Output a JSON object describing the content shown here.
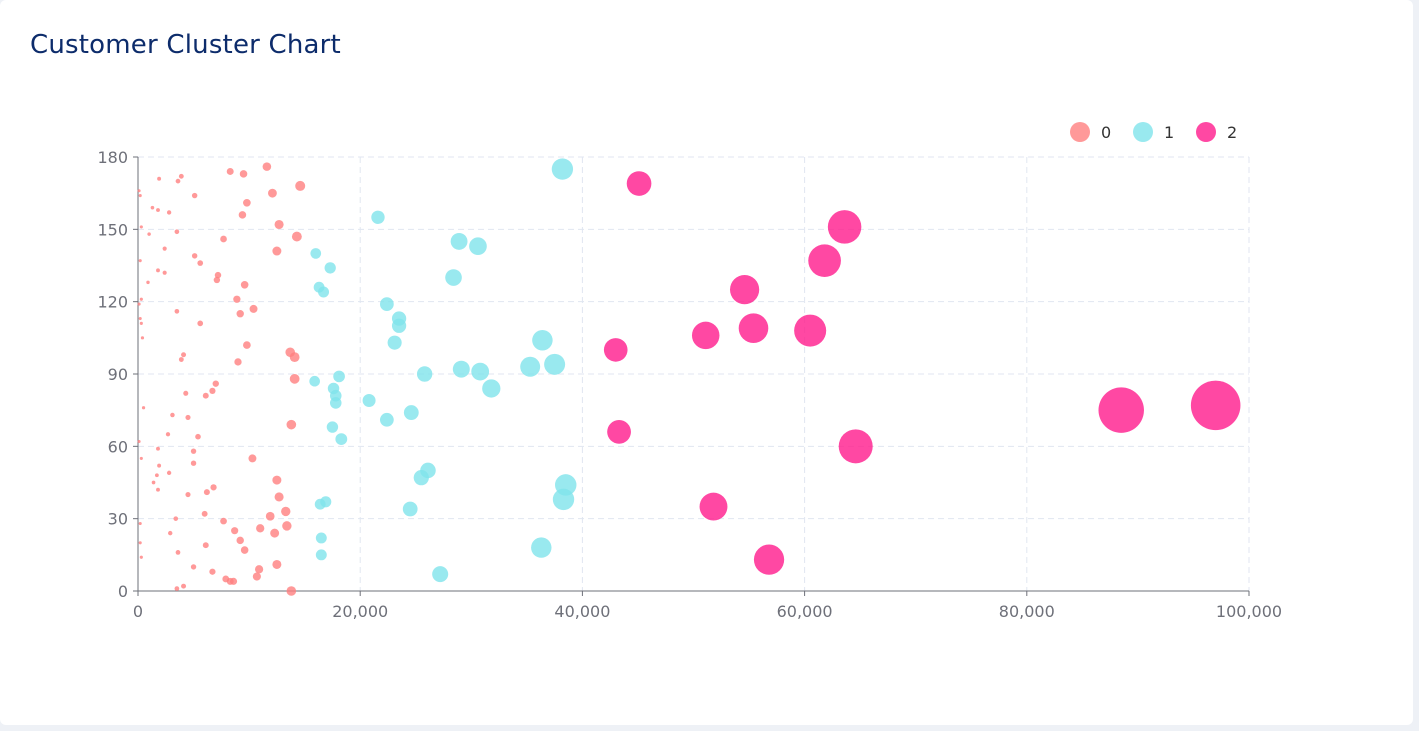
{
  "page": {
    "title": "Customer Cluster Chart"
  },
  "chart_data": {
    "type": "scatter",
    "title": "Customer Cluster Chart",
    "xlabel": "",
    "ylabel": "",
    "xlim": [
      0,
      100000
    ],
    "ylim": [
      0,
      180
    ],
    "x_ticks": [
      0,
      20000,
      40000,
      60000,
      80000,
      100000
    ],
    "x_tick_labels": [
      "0",
      "20,000",
      "40,000",
      "60,000",
      "80,000",
      "100,000"
    ],
    "y_ticks": [
      0,
      30,
      60,
      90,
      120,
      150,
      180
    ],
    "y_tick_labels": [
      "0",
      "30",
      "60",
      "90",
      "120",
      "150",
      "180"
    ],
    "grid": true,
    "legend_position": "top-right",
    "marker_size_encodes_x": true,
    "series": [
      {
        "name": "0",
        "color": "#ff7f7f",
        "points": [
          [
            100,
            166
          ],
          [
            200,
            164
          ],
          [
            300,
            151
          ],
          [
            200,
            137
          ],
          [
            300,
            121
          ],
          [
            100,
            119
          ],
          [
            200,
            113
          ],
          [
            300,
            111
          ],
          [
            400,
            105
          ],
          [
            500,
            76
          ],
          [
            100,
            62
          ],
          [
            300,
            55
          ],
          [
            200,
            28
          ],
          [
            200,
            20
          ],
          [
            300,
            14
          ],
          [
            1300,
            159
          ],
          [
            1800,
            158
          ],
          [
            2800,
            157
          ],
          [
            3500,
            149
          ],
          [
            1000,
            148
          ],
          [
            2400,
            142
          ],
          [
            1800,
            133
          ],
          [
            2400,
            132
          ],
          [
            900,
            128
          ],
          [
            3500,
            116
          ],
          [
            1900,
            171
          ],
          [
            3600,
            170
          ],
          [
            3900,
            172
          ],
          [
            5100,
            164
          ],
          [
            4100,
            98
          ],
          [
            3900,
            96
          ],
          [
            4300,
            82
          ],
          [
            3100,
            73
          ],
          [
            4500,
            72
          ],
          [
            2700,
            65
          ],
          [
            1800,
            59
          ],
          [
            1900,
            52
          ],
          [
            1700,
            48
          ],
          [
            1400,
            45
          ],
          [
            2800,
            49
          ],
          [
            1800,
            42
          ],
          [
            4500,
            40
          ],
          [
            3400,
            30
          ],
          [
            2900,
            24
          ],
          [
            3600,
            16
          ],
          [
            5000,
            10
          ],
          [
            4100,
            2
          ],
          [
            3500,
            1
          ],
          [
            8300,
            174
          ],
          [
            9500,
            173
          ],
          [
            11600,
            176
          ],
          [
            12100,
            165
          ],
          [
            14600,
            168
          ],
          [
            9800,
            161
          ],
          [
            9400,
            156
          ],
          [
            7700,
            146
          ],
          [
            12700,
            152
          ],
          [
            14300,
            147
          ],
          [
            12500,
            141
          ],
          [
            5100,
            139
          ],
          [
            5600,
            136
          ],
          [
            7200,
            131
          ],
          [
            7100,
            129
          ],
          [
            9600,
            127
          ],
          [
            8900,
            121
          ],
          [
            10400,
            117
          ],
          [
            9200,
            115
          ],
          [
            5600,
            111
          ],
          [
            9800,
            102
          ],
          [
            13700,
            99
          ],
          [
            14100,
            97
          ],
          [
            9000,
            95
          ],
          [
            14100,
            88
          ],
          [
            7000,
            86
          ],
          [
            6700,
            83
          ],
          [
            6100,
            81
          ],
          [
            13800,
            69
          ],
          [
            5400,
            64
          ],
          [
            10300,
            55
          ],
          [
            5000,
            58
          ],
          [
            5000,
            53
          ],
          [
            12500,
            46
          ],
          [
            6800,
            43
          ],
          [
            6200,
            41
          ],
          [
            12700,
            39
          ],
          [
            13300,
            33
          ],
          [
            11900,
            31
          ],
          [
            6000,
            32
          ],
          [
            7700,
            29
          ],
          [
            11000,
            26
          ],
          [
            13400,
            27
          ],
          [
            12300,
            24
          ],
          [
            8700,
            25
          ],
          [
            9200,
            21
          ],
          [
            9600,
            17
          ],
          [
            6100,
            19
          ],
          [
            12500,
            11
          ],
          [
            10900,
            9
          ],
          [
            6700,
            8
          ],
          [
            10700,
            6
          ],
          [
            7900,
            5
          ],
          [
            8600,
            4
          ],
          [
            8300,
            4
          ],
          [
            13800,
            0
          ]
        ]
      },
      {
        "name": "1",
        "color": "#7fe3eb",
        "points": [
          [
            38200,
            175
          ],
          [
            21600,
            155
          ],
          [
            28900,
            145
          ],
          [
            30600,
            143
          ],
          [
            16000,
            140
          ],
          [
            17300,
            134
          ],
          [
            28400,
            130
          ],
          [
            16300,
            126
          ],
          [
            16700,
            124
          ],
          [
            22400,
            119
          ],
          [
            23500,
            113
          ],
          [
            23500,
            110
          ],
          [
            23100,
            103
          ],
          [
            36400,
            104
          ],
          [
            25800,
            90
          ],
          [
            29100,
            92
          ],
          [
            30800,
            91
          ],
          [
            35300,
            93
          ],
          [
            37500,
            94
          ],
          [
            31800,
            84
          ],
          [
            15900,
            87
          ],
          [
            18100,
            89
          ],
          [
            17600,
            84
          ],
          [
            17800,
            81
          ],
          [
            17800,
            78
          ],
          [
            20800,
            79
          ],
          [
            24600,
            74
          ],
          [
            22400,
            71
          ],
          [
            17500,
            68
          ],
          [
            18300,
            63
          ],
          [
            26100,
            50
          ],
          [
            25500,
            47
          ],
          [
            38500,
            44
          ],
          [
            38300,
            38
          ],
          [
            16400,
            36
          ],
          [
            16900,
            37
          ],
          [
            24500,
            34
          ],
          [
            16500,
            22
          ],
          [
            16500,
            15
          ],
          [
            36300,
            18
          ],
          [
            27200,
            7
          ]
        ]
      },
      {
        "name": "2",
        "color": "#ff1a8c",
        "points": [
          [
            45100,
            169
          ],
          [
            63600,
            151
          ],
          [
            61800,
            137
          ],
          [
            54600,
            125
          ],
          [
            55400,
            109
          ],
          [
            60500,
            108
          ],
          [
            51100,
            106
          ],
          [
            43000,
            100
          ],
          [
            43300,
            66
          ],
          [
            88500,
            75
          ],
          [
            97000,
            77
          ],
          [
            64600,
            60
          ],
          [
            51800,
            35
          ],
          [
            56800,
            13
          ]
        ]
      }
    ]
  }
}
